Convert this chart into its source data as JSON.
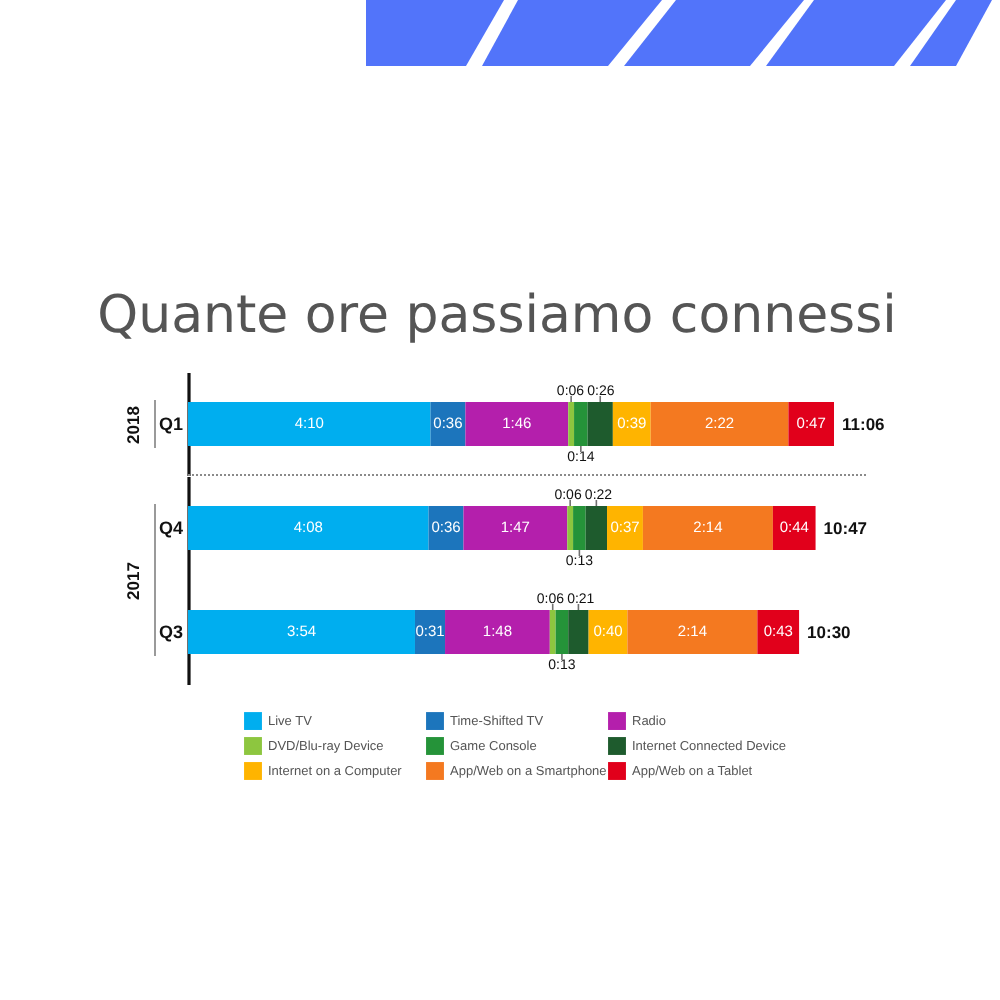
{
  "chart_data": [
    {
      "type": "bar",
      "orientation": "horizontal",
      "stacked": true,
      "title": "Quante ore passiamo connessi",
      "categories": [
        "Q1"
      ],
      "ylabel": "2018",
      "tick_labels": "y",
      "series": [
        {
          "color": "#00aeef",
          "values": [
            250
          ],
          "value_labels": [
            "4:10"
          ]
        },
        {
          "color": "#1c75bc",
          "values": [
            36
          ],
          "value_labels": [
            "0:36"
          ]
        },
        {
          "color": "#b41fac",
          "values": [
            106
          ],
          "value_labels": [
            "1:46"
          ]
        },
        {
          "color": "#8dc63f",
          "values": [
            6
          ],
          "value_labels": [
            "0:06"
          ]
        },
        {
          "color": "#259339",
          "values": [
            14
          ],
          "value_labels": [
            "0:14"
          ]
        },
        {
          "color": "#1e5b2d",
          "values": [
            26
          ],
          "value_labels": [
            "0:26"
          ]
        },
        {
          "color": "#ffb400",
          "values": [
            39
          ],
          "value_labels": [
            "0:39"
          ]
        },
        {
          "color": "#f47920",
          "values": [
            142
          ],
          "value_labels": [
            "2:22"
          ]
        },
        {
          "color": "#e1001b",
          "values": [
            47
          ],
          "value_labels": [
            "0:47"
          ]
        }
      ],
      "totals": [
        "11:06"
      ]
    },
    {
      "type": "bar",
      "orientation": "horizontal",
      "stacked": true,
      "categories": [
        "Q4",
        "Q3"
      ],
      "ylabel": "2017",
      "tick_labels": "y",
      "legend": "bottom",
      "series": [
        {
          "name": "Live TV",
          "color": "#00aeef",
          "values": [
            248,
            234
          ],
          "value_labels": [
            "4:08",
            "3:54"
          ]
        },
        {
          "name": "Time-Shifted TV",
          "color": "#1c75bc",
          "values": [
            36,
            31
          ],
          "value_labels": [
            "0:36",
            "0:31"
          ]
        },
        {
          "name": "Radio",
          "color": "#b41fac",
          "values": [
            107,
            108
          ],
          "value_labels": [
            "1:47",
            "1:48"
          ]
        },
        {
          "name": "DVD/Blu-ray Device",
          "color": "#8dc63f",
          "values": [
            6,
            6
          ],
          "value_labels": [
            "0:06",
            "0:06"
          ]
        },
        {
          "name": "Game Console",
          "color": "#259339",
          "values": [
            13,
            13
          ],
          "value_labels": [
            "0:13",
            "0:13"
          ]
        },
        {
          "name": "Internet Connected Device",
          "color": "#1e5b2d",
          "values": [
            22,
            21
          ],
          "value_labels": [
            "0:22",
            "0:21"
          ]
        },
        {
          "name": "Internet on a Computer",
          "color": "#ffb400",
          "values": [
            37,
            40
          ],
          "value_labels": [
            "0:37",
            "0:40"
          ]
        },
        {
          "name": "App/Web on a Smartphone",
          "color": "#f47920",
          "values": [
            134,
            134
          ],
          "value_labels": [
            "2:14",
            "2:14"
          ]
        },
        {
          "name": "App/Web on a Tablet",
          "color": "#e1001b",
          "values": [
            44,
            43
          ],
          "value_labels": [
            "0:44",
            "0:43"
          ]
        }
      ],
      "totals": [
        "10:47",
        "10:30"
      ]
    }
  ]
}
